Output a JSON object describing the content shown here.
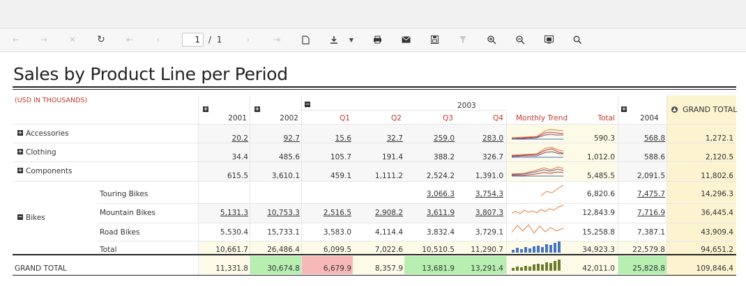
{
  "toolbar": {
    "page_current": "1",
    "page_sep": "/",
    "page_total": "1",
    "icons": [
      "back-icon",
      "forward-icon",
      "stop-icon",
      "refresh-icon",
      "first-page-icon",
      "prev-page-icon",
      "next-page-icon",
      "last-page-icon",
      "new-document-icon",
      "export-icon",
      "export-dropdown-icon",
      "print-icon",
      "email-icon",
      "save-icon",
      "filter-icon",
      "zoom-in-icon",
      "zoom-out-icon",
      "layout-icon",
      "find-icon"
    ]
  },
  "report": {
    "title": "Sales by Product Line per Period",
    "subtitle": "(USD IN THOUSANDS)",
    "header": {
      "y2001": "2001",
      "y2002": "2002",
      "y2003": "2003",
      "q1": "Q1",
      "q2": "Q2",
      "q3": "Q3",
      "q4": "Q4",
      "trend": "Monthly Trend",
      "total": "Total",
      "y2004": "2004",
      "grand_total": "GRAND TOTAL"
    },
    "rows": [
      {
        "label": "Accessories",
        "y2001": "20.2",
        "y2002": "92.7",
        "q1": "15.6",
        "q2": "32.7",
        "q3": "259.0",
        "q4": "283.0",
        "total": "590.3",
        "y2004": "568.8",
        "grand": "1,272.1"
      },
      {
        "label": "Clothing",
        "y2001": "34.4",
        "y2002": "485.6",
        "q1": "105.7",
        "q2": "191.4",
        "q3": "388.2",
        "q4": "326.7",
        "total": "1,012.0",
        "y2004": "588.6",
        "grand": "2,120.5"
      },
      {
        "label": "Components",
        "y2001": "615.5",
        "y2002": "3,610.1",
        "q1": "459.1",
        "q2": "1,111.2",
        "q3": "2,524.2",
        "q4": "1,391.0",
        "total": "5,485.5",
        "y2004": "2,091.5",
        "grand": "11,802.6"
      }
    ],
    "bikes": {
      "label": "Bikes",
      "rows": [
        {
          "label": "Touring Bikes",
          "y2001": "",
          "y2002": "",
          "q1": "",
          "q2": "",
          "q3": "3,066.3",
          "q4": "3,754.3",
          "total": "6,820.6",
          "y2004": "7,475.7",
          "grand": "14,296.3"
        },
        {
          "label": "Mountain Bikes",
          "y2001": "5,131.3",
          "y2002": "10,753.3",
          "q1": "2,516.5",
          "q2": "2,908.2",
          "q3": "3,611.9",
          "q4": "3,807.3",
          "total": "12,843.9",
          "y2004": "7,716.9",
          "grand": "36,445.4"
        },
        {
          "label": "Road Bikes",
          "y2001": "5,530.4",
          "y2002": "15,733.1",
          "q1": "3,583.0",
          "q2": "4,114.4",
          "q3": "3,832.4",
          "q4": "3,729.1",
          "total": "15,258.8",
          "y2004": "7,387.1",
          "grand": "43,909.4"
        },
        {
          "label": "Total",
          "y2001": "10,661.7",
          "y2002": "26,486.4",
          "q1": "6,099.5",
          "q2": "7,022.6",
          "q3": "10,510.5",
          "q4": "11,290.7",
          "total": "34,923.3",
          "y2004": "22,579.8",
          "grand": "94,651.2"
        }
      ]
    },
    "grand_row": {
      "label": "GRAND TOTAL",
      "y2001": "11,331.8",
      "y2002": "30,674.8",
      "q1": "6,679.9",
      "q2": "8,357.9",
      "q3": "13,681.9",
      "q4": "13,291.4",
      "total": "42,011.0",
      "y2004": "25,828.8",
      "grand": "109,846.4"
    },
    "colors": {
      "accent": "#c0392b",
      "cream": "#fdfbe8",
      "grand_col": "#fcf3d0",
      "green": "#b7efb1",
      "pink": "#f7b8b8",
      "bar_blue": "#4472c4",
      "bar_olive": "#6b7b2a"
    }
  }
}
